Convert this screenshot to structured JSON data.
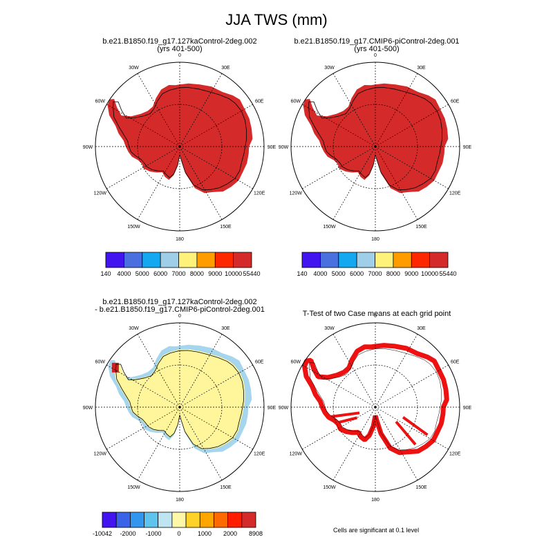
{
  "figure": {
    "title": "JJA TWS (mm)",
    "colors": {
      "ice_fill": "#d42a2a",
      "land_outline": "#000000",
      "diff_positive": "#fff59a",
      "diff_negative": "#a6d6ee",
      "diff_strong_positive": "#cc2222",
      "ttest_fill": "#ee1111"
    }
  },
  "panels": [
    {
      "id": "case1",
      "title_line1": "b.e21.B1850.f19_g17.127kaControl-2deg.002",
      "title_line2": "(yrs 401-500)",
      "field": "full",
      "colorbar": {
        "colors": [
          "#4214f0",
          "#4a70e0",
          "#14a8f0",
          "#9fcfe8",
          "#fff27a",
          "#ff9c00",
          "#fe2800",
          "#d42a2a"
        ],
        "labels": [
          "140",
          "4000",
          "5000",
          "6000",
          "7000",
          "8000",
          "9000",
          "10000",
          "55440"
        ]
      }
    },
    {
      "id": "case2",
      "title_line1": "b.e21.B1850.f19_g17.CMIP6-piControl-2deg.001",
      "title_line2": "(yrs 401-500)",
      "field": "full",
      "colorbar": {
        "colors": [
          "#4214f0",
          "#4a70e0",
          "#14a8f0",
          "#9fcfe8",
          "#fff27a",
          "#ff9c00",
          "#fe2800",
          "#d42a2a"
        ],
        "labels": [
          "140",
          "4000",
          "5000",
          "6000",
          "7000",
          "8000",
          "9000",
          "10000",
          "55440"
        ]
      }
    },
    {
      "id": "diff",
      "title_line1": "b.e21.B1850.f19_g17.127kaControl-2deg.002",
      "title_line2": "- b.e21.B1850.f19_g17.CMIP6-piControl-2deg.001",
      "field": "difference",
      "colorbar": {
        "colors": [
          "#4214f0",
          "#3a64e8",
          "#3396ee",
          "#5ec4ee",
          "#bfe4f2",
          "#fff7a8",
          "#ffd22a",
          "#ffa600",
          "#ff6a00",
          "#ff1e00",
          "#d42a2a"
        ],
        "labels": [
          "-10042",
          "-2000",
          "-1000",
          "0",
          "1000",
          "2000",
          "8908"
        ]
      }
    },
    {
      "id": "ttest",
      "title_line1": "T-Test of two Case means at each grid point",
      "title_line2": "",
      "field": "ttest",
      "note": "Cells are significant at 0.1 level"
    }
  ],
  "map_labels": {
    "top": "0",
    "bottom": "180",
    "left": "90W",
    "right": "90E",
    "upper_left_1": "30W",
    "upper_left_2": "60W",
    "upper_right_1": "30E",
    "upper_right_2": "60E",
    "lower_left_1": "120W",
    "lower_left_2": "150W",
    "lower_right_1": "120E",
    "lower_right_2": "150E"
  }
}
